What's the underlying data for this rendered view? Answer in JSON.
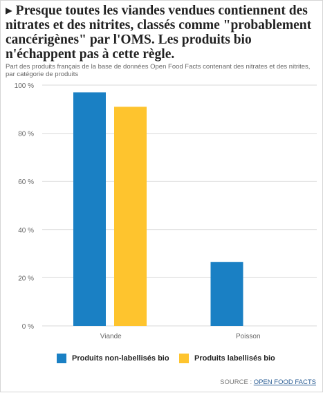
{
  "header": {
    "title": "▸ Presque toutes les viandes vendues contiennent des nitrates et des nitrites, classés comme \"probablement cancérigènes\" par l'OMS. Les produits bio n'échappent pas à cette règle.",
    "subtitle": "Part des produits français de la base de données Open Food Facts contenant des nitrates et des nitrites, par catégorie de produits"
  },
  "source": {
    "prefix": "SOURCE : ",
    "link_text": "OPEN FOOD FACTS"
  },
  "colors": {
    "series_1": "#1a80c4",
    "series_2": "#fec42e",
    "grid": "#d9d9d9",
    "axis_text": "#666666"
  },
  "chart_data": {
    "type": "bar",
    "categories": [
      "Viande",
      "Poisson"
    ],
    "series": [
      {
        "name": "Produits non-labellisés bio",
        "values": [
          97,
          26.5
        ]
      },
      {
        "name": "Produits labellisés bio",
        "values": [
          91,
          null
        ]
      }
    ],
    "ylim": [
      0,
      100
    ],
    "yticks": [
      0,
      20,
      40,
      60,
      80,
      100
    ],
    "ytick_labels": [
      "0 %",
      "20 %",
      "40 %",
      "60 %",
      "80 %",
      "100 %"
    ],
    "grid": true,
    "legend_position": "bottom"
  }
}
